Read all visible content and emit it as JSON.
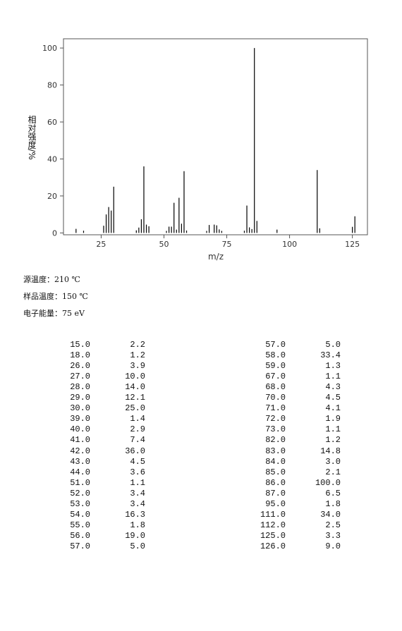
{
  "chart_data": {
    "type": "stick",
    "xlabel": "m/z",
    "ylabel": "相对强度/%",
    "x": [
      15,
      18,
      26,
      27,
      28,
      29,
      30,
      39,
      40,
      41,
      42,
      43,
      44,
      51,
      52,
      53,
      54,
      55,
      56,
      57,
      58,
      59,
      67,
      68,
      70,
      71,
      72,
      73,
      82,
      83,
      84,
      85,
      86,
      87,
      95,
      111,
      112,
      125,
      126
    ],
    "values": [
      2.2,
      1.2,
      3.9,
      10.0,
      14.0,
      12.1,
      25.0,
      1.4,
      2.9,
      7.4,
      36.0,
      4.5,
      3.6,
      1.1,
      3.4,
      3.4,
      16.3,
      1.8,
      19.0,
      5.0,
      33.4,
      1.3,
      1.1,
      4.3,
      4.5,
      4.1,
      1.9,
      1.1,
      1.2,
      14.8,
      3.0,
      2.1,
      100.0,
      6.5,
      1.8,
      34.0,
      2.5,
      3.3,
      9.0
    ],
    "color": "#000000",
    "xlim": [
      10,
      131
    ],
    "xticks": [
      25,
      50,
      75,
      100,
      125
    ],
    "ylim": [
      -1,
      105
    ],
    "yticks": [
      0,
      20,
      40,
      60,
      80,
      100
    ]
  },
  "info": [
    "源温度：210 ℃",
    "样品温度：150 ℃",
    "电子能量：75 eV"
  ],
  "table": {
    "left": [
      [
        "15.0",
        "2.2"
      ],
      [
        "18.0",
        "1.2"
      ],
      [
        "26.0",
        "3.9"
      ],
      [
        "27.0",
        "10.0"
      ],
      [
        "28.0",
        "14.0"
      ],
      [
        "29.0",
        "12.1"
      ],
      [
        "30.0",
        "25.0"
      ],
      [
        "39.0",
        "1.4"
      ],
      [
        "40.0",
        "2.9"
      ],
      [
        "41.0",
        "7.4"
      ],
      [
        "42.0",
        "36.0"
      ],
      [
        "43.0",
        "4.5"
      ],
      [
        "44.0",
        "3.6"
      ],
      [
        "51.0",
        "1.1"
      ],
      [
        "52.0",
        "3.4"
      ],
      [
        "53.0",
        "3.4"
      ],
      [
        "54.0",
        "16.3"
      ],
      [
        "55.0",
        "1.8"
      ],
      [
        "56.0",
        "19.0"
      ],
      [
        "57.0",
        "5.0"
      ]
    ],
    "right": [
      [
        "57.0",
        "5.0"
      ],
      [
        "58.0",
        "33.4"
      ],
      [
        "59.0",
        "1.3"
      ],
      [
        "67.0",
        "1.1"
      ],
      [
        "68.0",
        "4.3"
      ],
      [
        "70.0",
        "4.5"
      ],
      [
        "71.0",
        "4.1"
      ],
      [
        "72.0",
        "1.9"
      ],
      [
        "73.0",
        "1.1"
      ],
      [
        "82.0",
        "1.2"
      ],
      [
        "83.0",
        "14.8"
      ],
      [
        "84.0",
        "3.0"
      ],
      [
        "85.0",
        "2.1"
      ],
      [
        "86.0",
        "100.0"
      ],
      [
        "87.0",
        "6.5"
      ],
      [
        "95.0",
        "1.8"
      ],
      [
        "111.0",
        "34.0"
      ],
      [
        "112.0",
        "2.5"
      ],
      [
        "125.0",
        "3.3"
      ],
      [
        "126.0",
        "9.0"
      ]
    ]
  }
}
